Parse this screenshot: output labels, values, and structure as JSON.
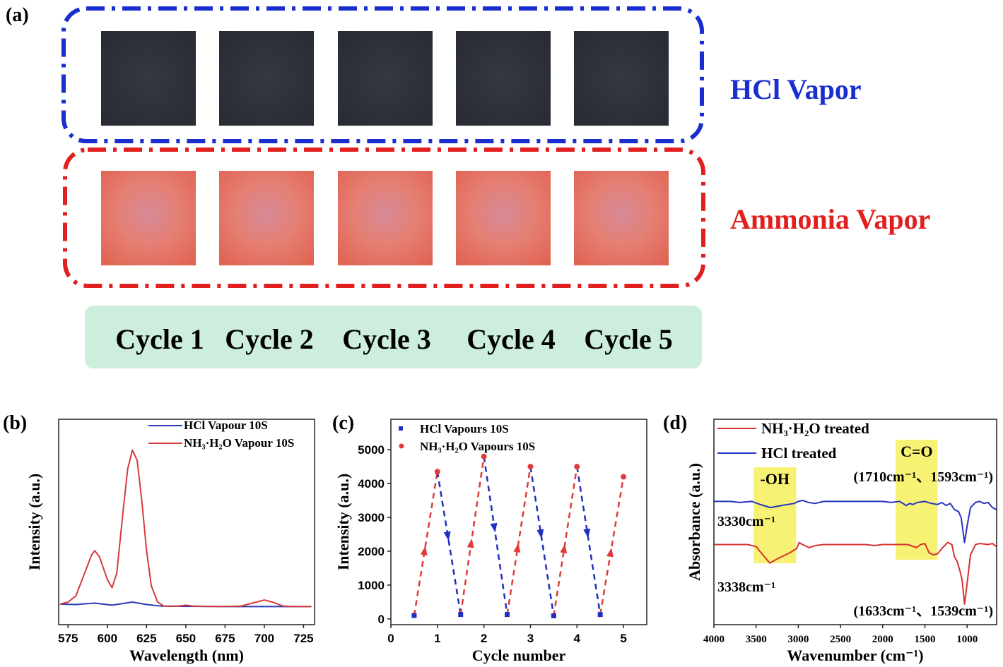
{
  "panel_labels": {
    "a": "(a)",
    "b": "(b)",
    "c": "(c)",
    "d": "(d)"
  },
  "panel_a": {
    "hcl_label": "HCl Vapor",
    "ammonia_label": "Ammonia Vapor",
    "cycles": [
      "Cycle 1",
      "Cycle 2",
      "Cycle 3",
      "Cycle 4",
      "Cycle 5"
    ],
    "colors": {
      "hcl": "#1a2ed0",
      "ammonia": "#e21f1f",
      "cycle_band": "#cdeedd"
    }
  },
  "chart_data": [
    {
      "id": "b",
      "type": "line",
      "title": "",
      "xlabel": "Wavelength (nm)",
      "ylabel": "Intensity (a.u.)",
      "xlim": [
        569,
        732
      ],
      "ylim": [
        0,
        1
      ],
      "xticks": [
        575,
        600,
        625,
        650,
        675,
        700,
        725
      ],
      "yticks": [],
      "legend": "top-right",
      "series": [
        {
          "name": "HCl Vapour 10S",
          "color": "#2a3cb8",
          "x": [
            570,
            580,
            592,
            603,
            616,
            625,
            635,
            680,
            730
          ],
          "y": [
            0.1,
            0.098,
            0.105,
            0.095,
            0.11,
            0.098,
            0.09,
            0.088,
            0.088
          ]
        },
        {
          "name": "NH₃·H₂O Vapour 10S",
          "color": "#d63a3a",
          "x": [
            570,
            575,
            580,
            585,
            590,
            592,
            595,
            600,
            603,
            606,
            610,
            613,
            616,
            619,
            622,
            625,
            628,
            632,
            636,
            645,
            650,
            655,
            670,
            685,
            695,
            700,
            705,
            712,
            720,
            730
          ],
          "y": [
            0.1,
            0.11,
            0.14,
            0.24,
            0.34,
            0.36,
            0.33,
            0.22,
            0.18,
            0.25,
            0.55,
            0.76,
            0.85,
            0.8,
            0.6,
            0.36,
            0.19,
            0.11,
            0.09,
            0.09,
            0.095,
            0.09,
            0.088,
            0.09,
            0.11,
            0.12,
            0.11,
            0.09,
            0.088,
            0.088
          ]
        }
      ]
    },
    {
      "id": "c",
      "type": "scatter",
      "title": "",
      "xlabel": "Cycle number",
      "ylabel": "Intensity (a.u.)",
      "xlim": [
        0,
        5.5
      ],
      "ylim": [
        -170,
        5900
      ],
      "xticks": [
        0,
        1,
        2,
        3,
        4,
        5
      ],
      "yticks": [
        0,
        1000,
        2000,
        3000,
        4000,
        5000
      ],
      "legend": "top-left",
      "series": [
        {
          "name": "HCl Vapours 10S",
          "color": "#1f2fc0",
          "marker": "square",
          "x": [
            0.5,
            1.5,
            2.5,
            3.5,
            4.5
          ],
          "y": [
            100,
            130,
            130,
            90,
            130
          ]
        },
        {
          "name": "NH₃·H₂O Vapours 10S",
          "color": "#e03a3a",
          "marker": "circle",
          "x": [
            1,
            2,
            3,
            4,
            5
          ],
          "y": [
            4350,
            4800,
            4500,
            4500,
            4200
          ]
        }
      ]
    },
    {
      "id": "d",
      "type": "line",
      "title": "",
      "xlabel": "Wavenumber (cm⁻¹)",
      "ylabel": "Absorbance (a.u.)",
      "xlim": [
        4000,
        650
      ],
      "ylim": [
        0,
        1
      ],
      "xticks": [
        4000,
        3500,
        3000,
        2500,
        2000,
        1500,
        1000
      ],
      "yticks": [],
      "legend": "top-left",
      "highlights": [
        {
          "label": "-OH",
          "from": 3530,
          "to": 3025,
          "color": "#f6f05a"
        },
        {
          "label": "C=O",
          "from": 1845,
          "to": 1350,
          "color": "#f6f05a"
        }
      ],
      "annotations": [
        "(1710cm⁻¹、1593cm⁻¹)",
        "3330cm⁻¹",
        "3338cm⁻¹",
        "(1633cm⁻¹、1539cm⁻¹)"
      ],
      "series": [
        {
          "name": "NH₃·H₂O treated",
          "color": "#d83030",
          "x": [
            4000,
            3600,
            3500,
            3400,
            3338,
            3250,
            3100,
            3020,
            2990,
            2950,
            2870,
            2800,
            2700,
            2200,
            2100,
            2000,
            1700,
            1600,
            1550,
            1500,
            1450,
            1400,
            1350,
            1300,
            1230,
            1180,
            1150,
            1120,
            1090,
            1060,
            1030,
            1000,
            960,
            900,
            850,
            750,
            700,
            650
          ],
          "y": [
            0.39,
            0.39,
            0.38,
            0.33,
            0.3,
            0.32,
            0.35,
            0.37,
            0.4,
            0.39,
            0.375,
            0.385,
            0.39,
            0.39,
            0.385,
            0.39,
            0.39,
            0.375,
            0.39,
            0.395,
            0.35,
            0.34,
            0.345,
            0.37,
            0.4,
            0.39,
            0.33,
            0.31,
            0.27,
            0.22,
            0.1,
            0.2,
            0.34,
            0.39,
            0.395,
            0.39,
            0.395,
            0.38
          ]
        },
        {
          "name": "HCl treated",
          "color": "#2535c0",
          "x": [
            4000,
            3800,
            3700,
            3550,
            3450,
            3330,
            3200,
            3050,
            3000,
            2950,
            2880,
            2800,
            2700,
            2000,
            1900,
            1800,
            1720,
            1680,
            1640,
            1590,
            1500,
            1420,
            1350,
            1300,
            1250,
            1200,
            1150,
            1100,
            1070,
            1030,
            1000,
            960,
            900,
            850,
            800,
            750,
            700,
            650
          ],
          "y": [
            0.6,
            0.6,
            0.595,
            0.6,
            0.585,
            0.57,
            0.58,
            0.59,
            0.6,
            0.605,
            0.595,
            0.59,
            0.6,
            0.6,
            0.595,
            0.6,
            0.58,
            0.59,
            0.585,
            0.595,
            0.6,
            0.59,
            0.585,
            0.595,
            0.58,
            0.59,
            0.56,
            0.55,
            0.52,
            0.4,
            0.48,
            0.57,
            0.595,
            0.6,
            0.59,
            0.595,
            0.57,
            0.56
          ]
        }
      ]
    }
  ]
}
